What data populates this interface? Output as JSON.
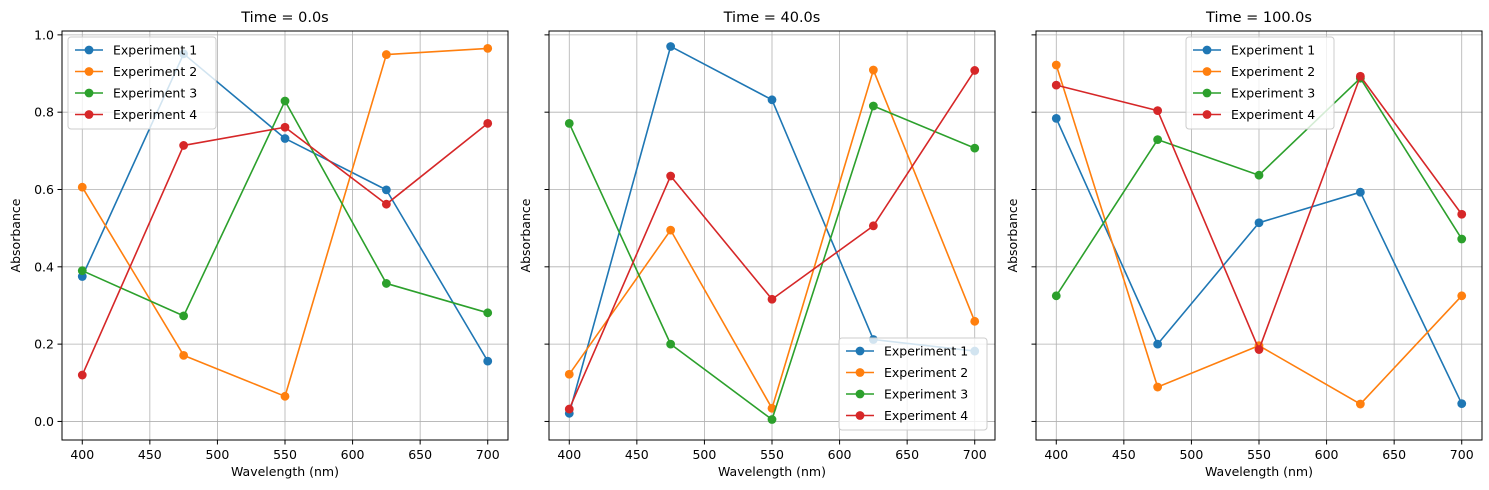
{
  "colors": {
    "series": [
      "#1f77b4",
      "#ff7f0e",
      "#2ca02c",
      "#d62728"
    ],
    "grid": "#b0b0b0",
    "axis": "#000000"
  },
  "chart_data": [
    {
      "type": "line",
      "title": "Time = 0.0s",
      "xlabel": "Wavelength (nm)",
      "ylabel": "Absorbance",
      "x": [
        400,
        475,
        550,
        625,
        700
      ],
      "xlim": [
        385,
        715
      ],
      "ylim": [
        -0.048,
        1.01
      ],
      "xticks": [
        400,
        450,
        500,
        550,
        600,
        650,
        700
      ],
      "yticks": [
        0.0,
        0.2,
        0.4,
        0.6,
        0.8,
        1.0
      ],
      "ytick_labels": [
        "0.0",
        "0.2",
        "0.4",
        "0.6",
        "0.8",
        "1.0"
      ],
      "show_ytick_labels": true,
      "grid": true,
      "legend": "upper-left",
      "series": [
        {
          "name": "Experiment 1",
          "values": [
            0.375,
            0.951,
            0.732,
            0.599,
            0.156
          ]
        },
        {
          "name": "Experiment 2",
          "values": [
            0.606,
            0.171,
            0.065,
            0.949,
            0.965
          ]
        },
        {
          "name": "Experiment 3",
          "values": [
            0.39,
            0.273,
            0.829,
            0.357,
            0.281
          ]
        },
        {
          "name": "Experiment 4",
          "values": [
            0.12,
            0.714,
            0.761,
            0.562,
            0.771
          ]
        }
      ]
    },
    {
      "type": "line",
      "title": "Time = 40.0s",
      "xlabel": "Wavelength (nm)",
      "ylabel": "Absorbance",
      "x": [
        400,
        475,
        550,
        625,
        700
      ],
      "xlim": [
        385,
        715
      ],
      "ylim": [
        -0.048,
        1.01
      ],
      "xticks": [
        400,
        450,
        500,
        550,
        600,
        650,
        700
      ],
      "yticks": [
        0.0,
        0.2,
        0.4,
        0.6,
        0.8,
        1.0
      ],
      "ytick_labels": [
        "0.0",
        "0.2",
        "0.4",
        "0.6",
        "0.8",
        "1.0"
      ],
      "show_ytick_labels": false,
      "grid": true,
      "legend": "lower-right",
      "series": [
        {
          "name": "Experiment 1",
          "values": [
            0.021,
            0.97,
            0.832,
            0.212,
            0.182
          ]
        },
        {
          "name": "Experiment 2",
          "values": [
            0.122,
            0.495,
            0.034,
            0.909,
            0.259
          ]
        },
        {
          "name": "Experiment 3",
          "values": [
            0.771,
            0.2,
            0.005,
            0.816,
            0.707
          ]
        },
        {
          "name": "Experiment 4",
          "values": [
            0.032,
            0.635,
            0.316,
            0.506,
            0.908
          ]
        }
      ]
    },
    {
      "type": "line",
      "title": "Time = 100.0s",
      "xlabel": "Wavelength (nm)",
      "ylabel": "Absorbance",
      "x": [
        400,
        475,
        550,
        625,
        700
      ],
      "xlim": [
        385,
        715
      ],
      "ylim": [
        -0.048,
        1.01
      ],
      "xticks": [
        400,
        450,
        500,
        550,
        600,
        650,
        700
      ],
      "yticks": [
        0.0,
        0.2,
        0.4,
        0.6,
        0.8,
        1.0
      ],
      "ytick_labels": [
        "0.0",
        "0.2",
        "0.4",
        "0.6",
        "0.8",
        "1.0"
      ],
      "show_ytick_labels": false,
      "grid": true,
      "legend": "upper-center",
      "series": [
        {
          "name": "Experiment 1",
          "values": [
            0.784,
            0.2,
            0.514,
            0.593,
            0.046
          ]
        },
        {
          "name": "Experiment 2",
          "values": [
            0.922,
            0.089,
            0.196,
            0.045,
            0.325
          ]
        },
        {
          "name": "Experiment 3",
          "values": [
            0.325,
            0.729,
            0.637,
            0.888,
            0.472
          ]
        },
        {
          "name": "Experiment 4",
          "values": [
            0.87,
            0.804,
            0.186,
            0.893,
            0.536
          ]
        }
      ]
    }
  ]
}
